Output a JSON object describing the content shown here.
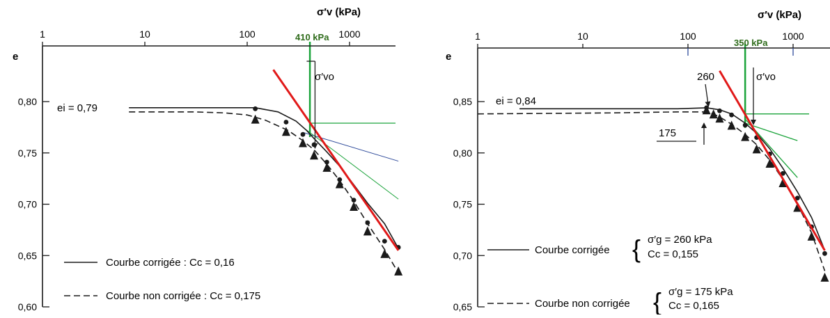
{
  "chart_data": [
    {
      "type": "line",
      "xscale": "log",
      "xlabel": "σ′v  (kPa)",
      "ylabel": "e",
      "xlim": [
        1,
        3000
      ],
      "ylim": [
        0.6,
        0.8
      ],
      "xticks": [
        1,
        10,
        100,
        1000
      ],
      "xtick_labels": [
        "1",
        "10",
        "100",
        "1000"
      ],
      "yticks": [
        0.8,
        0.75,
        0.7,
        0.65,
        0.6
      ],
      "ytick_labels": [
        "0,80",
        "0,75",
        "0,70",
        "0,65",
        "0,60"
      ],
      "series": [
        {
          "name": "Courbe corrigée : Cc = 0,16",
          "style": "solid",
          "marker": "circle",
          "color": "#1a1a1a",
          "x": [
            7,
            30,
            60,
            120,
            200,
            300,
            380,
            450,
            600,
            800,
            1100,
            1500,
            2200,
            3000
          ],
          "y": [
            0.794,
            0.794,
            0.794,
            0.794,
            0.79,
            0.781,
            0.772,
            0.764,
            0.751,
            0.737,
            0.719,
            0.701,
            0.681,
            0.657
          ],
          "marker_x": [
            120,
            240,
            350,
            450,
            600,
            800,
            1100,
            1500,
            2200,
            3000
          ],
          "marker_y": [
            0.793,
            0.78,
            0.768,
            0.758,
            0.741,
            0.724,
            0.704,
            0.682,
            0.664,
            0.658
          ]
        },
        {
          "name": "Courbe non corrigée : Cc = 0,175",
          "style": "dashed",
          "marker": "triangle",
          "color": "#1a1a1a",
          "x": [
            7,
            30,
            60,
            100,
            150,
            250,
            350,
            450,
            600,
            800,
            1100,
            1500,
            2200,
            3000
          ],
          "y": [
            0.79,
            0.79,
            0.789,
            0.787,
            0.782,
            0.772,
            0.762,
            0.753,
            0.739,
            0.723,
            0.703,
            0.681,
            0.656,
            0.633
          ],
          "marker_x": [
            120,
            240,
            350,
            450,
            600,
            800,
            1100,
            1500,
            2200,
            3000
          ],
          "marker_y": [
            0.783,
            0.771,
            0.76,
            0.748,
            0.736,
            0.72,
            0.698,
            0.674,
            0.652,
            0.635
          ]
        }
      ],
      "annotations": {
        "ei_label": "ei = 0,79",
        "sigma_vo_label": "σ′vo",
        "preconsolidation_label": "410 kPa",
        "preconsolidation_value": 410,
        "sigma_vo_value": 460,
        "legend_solid": "Courbe corrigée : Cc = 0,16",
        "legend_dashed": "Courbe non corrigée : Cc = 0,175"
      },
      "construction_lines": {
        "red_tangent": {
          "x": [
            180,
            3000
          ],
          "y": [
            0.831,
            0.655
          ]
        },
        "green_vertical_x": 410,
        "green_horizontal_y": 0.779,
        "blue_line": {
          "x": [
            350,
            3000
          ],
          "y": [
            0.77,
            0.742
          ]
        },
        "green_bisector": {
          "x": [
            350,
            3000
          ],
          "y": [
            0.775,
            0.705
          ]
        }
      },
      "colors": {
        "tangent": "#e11919",
        "construction": "#1aa33a",
        "blue": "#2e4a9a",
        "label_green": "#2e6b1a"
      }
    },
    {
      "type": "line",
      "xscale": "log",
      "xlabel": "σ′v  (kPa)",
      "ylabel": "e",
      "xlim": [
        1,
        2000
      ],
      "ylim": [
        0.65,
        0.85
      ],
      "xticks": [
        1,
        10,
        100,
        1000
      ],
      "xtick_labels": [
        "1",
        "10",
        "100",
        "1000"
      ],
      "yticks": [
        0.85,
        0.8,
        0.75,
        0.7,
        0.65
      ],
      "ytick_labels": [
        "0,85",
        "0,80",
        "0,75",
        "0,70",
        "0,65"
      ],
      "series": [
        {
          "name": "Courbe corrigée",
          "style": "solid",
          "marker": "circle",
          "color": "#1a1a1a",
          "x": [
            2.5,
            20,
            80,
            150,
            200,
            260,
            350,
            450,
            600,
            800,
            1100,
            1500,
            2000
          ],
          "y": [
            0.843,
            0.843,
            0.843,
            0.844,
            0.842,
            0.838,
            0.829,
            0.819,
            0.804,
            0.785,
            0.762,
            0.737,
            0.705
          ],
          "marker_x": [
            150,
            200,
            260,
            350,
            450,
            600,
            800,
            1100,
            1500,
            2000
          ],
          "marker_y": [
            0.844,
            0.841,
            0.837,
            0.827,
            0.815,
            0.799,
            0.78,
            0.756,
            0.728,
            0.702
          ]
        },
        {
          "name": "Courbe non corrigée",
          "style": "dashed",
          "marker": "triangle",
          "color": "#1a1a1a",
          "x": [
            1,
            20,
            80,
            150,
            175,
            200,
            260,
            350,
            450,
            600,
            800,
            1100,
            1500,
            2000
          ],
          "y": [
            0.838,
            0.839,
            0.84,
            0.84,
            0.838,
            0.835,
            0.828,
            0.818,
            0.808,
            0.793,
            0.774,
            0.75,
            0.722,
            0.685
          ],
          "marker_x": [
            150,
            175,
            200,
            260,
            350,
            450,
            600,
            800,
            1100,
            1500,
            2000
          ],
          "marker_y": [
            0.842,
            0.838,
            0.834,
            0.827,
            0.816,
            0.804,
            0.79,
            0.771,
            0.747,
            0.719,
            0.679
          ]
        }
      ],
      "annotations": {
        "ei_label": "ei = 0,84",
        "sigma_vo_label": "σ′vo",
        "preconsolidation_label": "350 kPa",
        "preconsolidation_value": 350,
        "arrow_260_label": "260",
        "arrow_175_label": "175",
        "legend_solid_name": "Courbe corrigée",
        "legend_solid_sg": "σ′g  =  260 kPa",
        "legend_solid_cc": "Cc  =  0,155",
        "legend_dashed_name": "Courbe non corrigée",
        "legend_dashed_sg": "σ′g  =  175 kPa",
        "legend_dashed_cc": "Cc  =  0,165"
      },
      "construction_lines": {
        "red_tangent": {
          "x": [
            200,
            2000
          ],
          "y": [
            0.88,
            0.705
          ]
        },
        "green_vertical_x": 350,
        "green_horizontal_y": 0.838,
        "green_line_1": {
          "x": [
            350,
            1100
          ],
          "y": [
            0.829,
            0.812
          ]
        },
        "green_line_2": {
          "x": [
            350,
            1100
          ],
          "y": [
            0.833,
            0.776
          ]
        }
      },
      "colors": {
        "tangent": "#e11919",
        "construction": "#1aa33a",
        "label_green": "#2e6b1a"
      }
    }
  ]
}
